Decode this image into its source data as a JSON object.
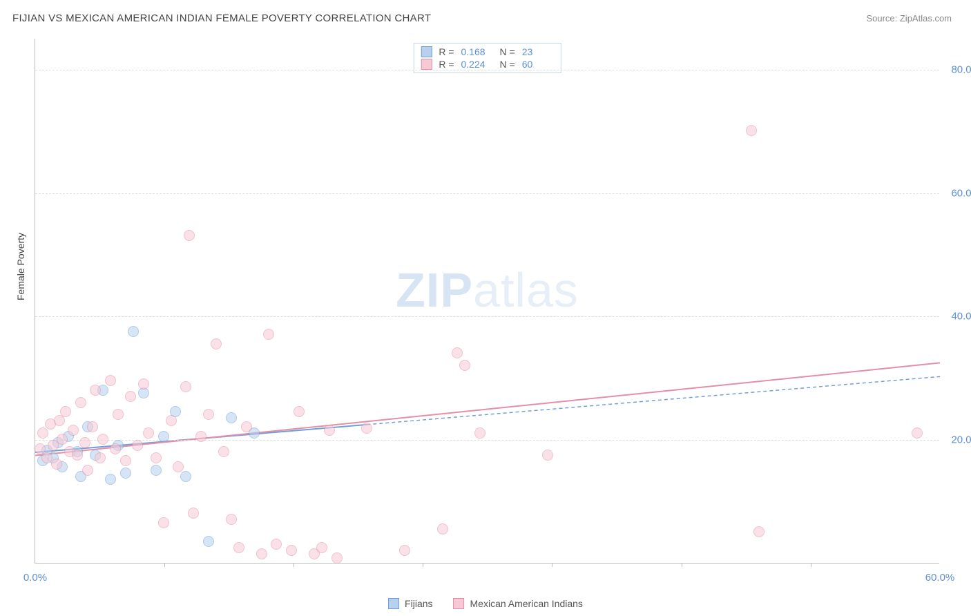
{
  "title": "FIJIAN VS MEXICAN AMERICAN INDIAN FEMALE POVERTY CORRELATION CHART",
  "source": "Source: ZipAtlas.com",
  "watermark": {
    "zip": "ZIP",
    "atlas": "atlas"
  },
  "y_axis_title": "Female Poverty",
  "chart": {
    "type": "scatter",
    "xlim": [
      0,
      60
    ],
    "ylim": [
      0,
      85
    ],
    "x_ticks": [
      0,
      60
    ],
    "x_tick_labels": [
      "0.0%",
      "60.0%"
    ],
    "x_minor_ticks": [
      8.57,
      17.14,
      25.71,
      34.28,
      42.85,
      51.42
    ],
    "y_ticks": [
      20,
      40,
      60,
      80
    ],
    "y_tick_labels": [
      "20.0%",
      "40.0%",
      "60.0%",
      "80.0%"
    ],
    "background_color": "#ffffff",
    "grid_color": "#dddddd",
    "axis_color": "#bbbbbb",
    "tick_label_color": "#5b8fd6",
    "point_radius": 8,
    "point_opacity": 0.55,
    "series": [
      {
        "name": "Fijians",
        "color_fill": "#b6d0ee",
        "color_stroke": "#6f9fd8",
        "R": "0.168",
        "N": "23",
        "regression": {
          "x1": 0,
          "y1": 18.0,
          "x2": 22,
          "y2": 22.5,
          "dashed_after_x": 22
        },
        "points": [
          [
            0.5,
            16.5
          ],
          [
            0.8,
            18.2
          ],
          [
            1.2,
            17.0
          ],
          [
            1.5,
            19.5
          ],
          [
            1.8,
            15.5
          ],
          [
            2.2,
            20.5
          ],
          [
            2.8,
            18.0
          ],
          [
            3.0,
            14.0
          ],
          [
            3.5,
            22.0
          ],
          [
            4.0,
            17.5
          ],
          [
            4.5,
            28.0
          ],
          [
            5.0,
            13.5
          ],
          [
            5.5,
            19.0
          ],
          [
            6.0,
            14.5
          ],
          [
            6.5,
            37.5
          ],
          [
            7.2,
            27.5
          ],
          [
            8.0,
            15.0
          ],
          [
            8.5,
            20.5
          ],
          [
            9.3,
            24.5
          ],
          [
            10.0,
            14.0
          ],
          [
            11.5,
            3.5
          ],
          [
            13.0,
            23.5
          ],
          [
            14.5,
            21.0
          ]
        ]
      },
      {
        "name": "Mexican American Indians",
        "color_fill": "#f6c9d5",
        "color_stroke": "#e38fa8",
        "R": "0.224",
        "N": "60",
        "regression": {
          "x1": 0,
          "y1": 17.5,
          "x2": 60,
          "y2": 32.5,
          "dashed_after_x": 60
        },
        "points": [
          [
            0.3,
            18.5
          ],
          [
            0.5,
            21.0
          ],
          [
            0.8,
            17.0
          ],
          [
            1.0,
            22.5
          ],
          [
            1.2,
            19.0
          ],
          [
            1.4,
            16.0
          ],
          [
            1.6,
            23.0
          ],
          [
            1.8,
            20.0
          ],
          [
            2.0,
            24.5
          ],
          [
            2.3,
            18.0
          ],
          [
            2.5,
            21.5
          ],
          [
            2.8,
            17.5
          ],
          [
            3.0,
            26.0
          ],
          [
            3.3,
            19.5
          ],
          [
            3.5,
            15.0
          ],
          [
            3.8,
            22.0
          ],
          [
            4.0,
            28.0
          ],
          [
            4.3,
            17.0
          ],
          [
            4.5,
            20.0
          ],
          [
            5.0,
            29.5
          ],
          [
            5.3,
            18.5
          ],
          [
            5.5,
            24.0
          ],
          [
            6.0,
            16.5
          ],
          [
            6.3,
            27.0
          ],
          [
            6.8,
            19.0
          ],
          [
            7.2,
            29.0
          ],
          [
            7.5,
            21.0
          ],
          [
            8.0,
            17.0
          ],
          [
            8.5,
            6.5
          ],
          [
            9.0,
            23.0
          ],
          [
            9.5,
            15.5
          ],
          [
            10.0,
            28.5
          ],
          [
            10.2,
            53.0
          ],
          [
            10.5,
            8.0
          ],
          [
            11.0,
            20.5
          ],
          [
            11.5,
            24.0
          ],
          [
            12.0,
            35.5
          ],
          [
            12.5,
            18.0
          ],
          [
            13.0,
            7.0
          ],
          [
            13.5,
            2.5
          ],
          [
            14.0,
            22.0
          ],
          [
            15.0,
            1.5
          ],
          [
            15.5,
            37.0
          ],
          [
            16.0,
            3.0
          ],
          [
            17.0,
            2.0
          ],
          [
            17.5,
            24.5
          ],
          [
            18.5,
            1.5
          ],
          [
            19.0,
            2.5
          ],
          [
            19.5,
            21.5
          ],
          [
            20.0,
            0.8
          ],
          [
            22.0,
            21.8
          ],
          [
            24.5,
            2.0
          ],
          [
            27.0,
            5.5
          ],
          [
            28.0,
            34.0
          ],
          [
            28.5,
            32.0
          ],
          [
            29.5,
            21.0
          ],
          [
            34.0,
            17.5
          ],
          [
            47.5,
            70.0
          ],
          [
            48.0,
            5.0
          ],
          [
            58.5,
            21.0
          ]
        ]
      }
    ]
  },
  "legend_top": {
    "rows": [
      {
        "swatch_fill": "#b6d0ee",
        "swatch_stroke": "#6f9fd8",
        "r_label": "R =",
        "r_val": "0.168",
        "n_label": "N =",
        "n_val": "23"
      },
      {
        "swatch_fill": "#f6c9d5",
        "swatch_stroke": "#e38fa8",
        "r_label": "R =",
        "r_val": "0.224",
        "n_label": "N =",
        "n_val": "60"
      }
    ]
  },
  "legend_bottom": {
    "items": [
      {
        "swatch_fill": "#b6d0ee",
        "swatch_stroke": "#6f9fd8",
        "label": "Fijians"
      },
      {
        "swatch_fill": "#f6c9d5",
        "swatch_stroke": "#e38fa8",
        "label": "Mexican American Indians"
      }
    ]
  }
}
